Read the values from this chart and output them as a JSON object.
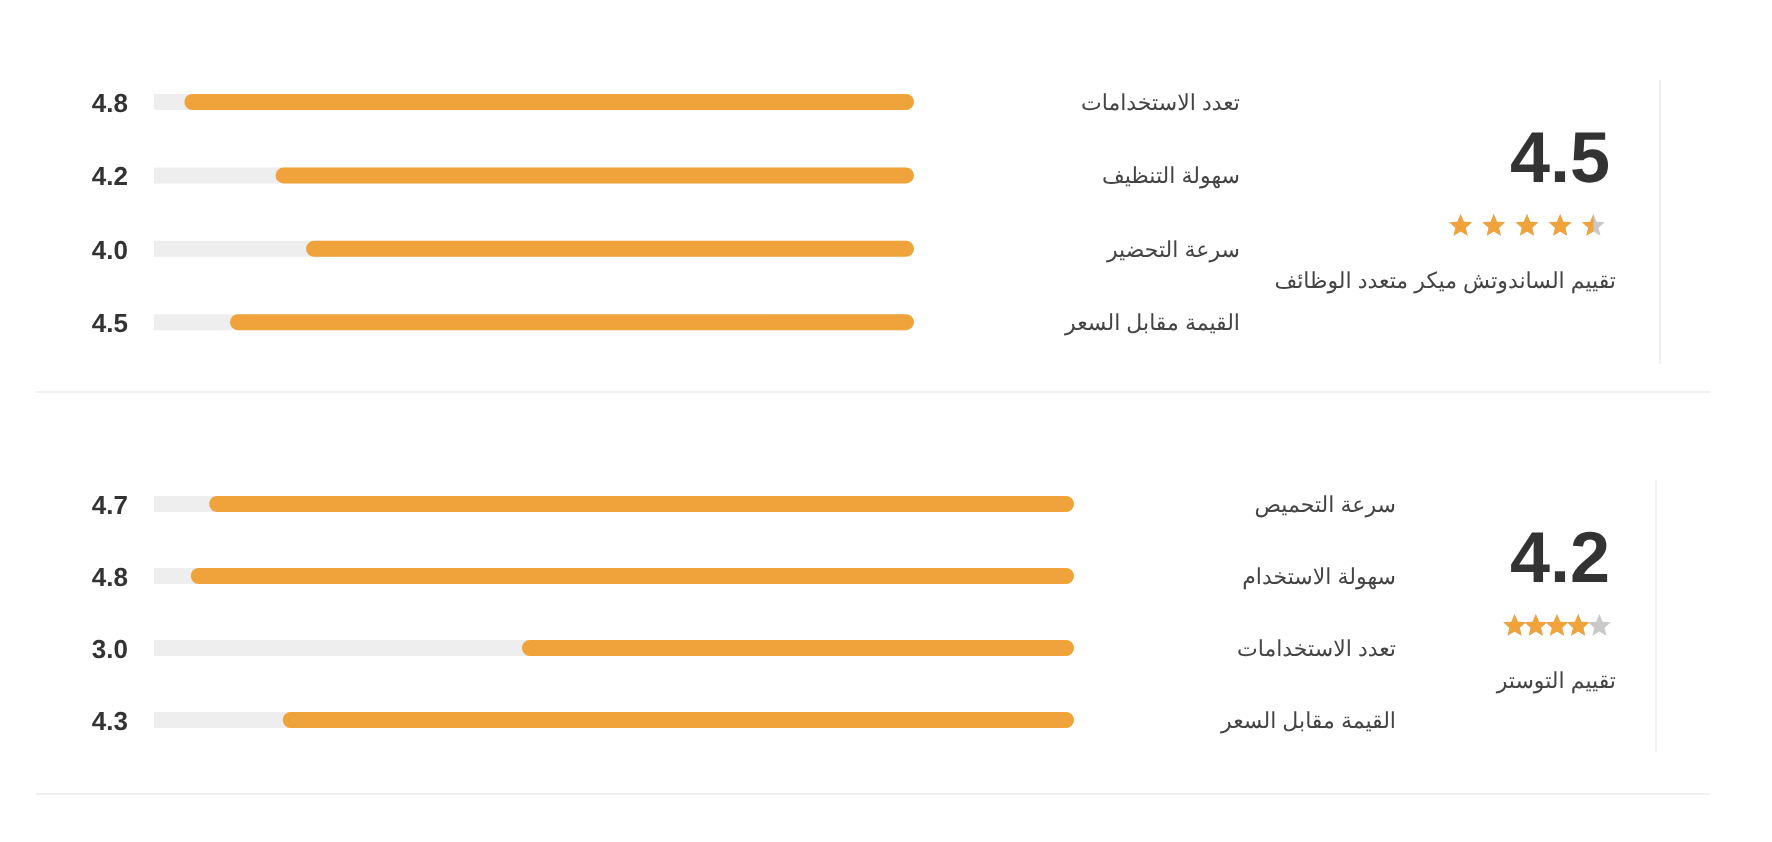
{
  "chart_data": [
    {
      "type": "other",
      "title": "تقييم الساندوتش ميكر متعدد الوظائف",
      "annotations": [
        "4.5"
      ]
    },
    {
      "type": "bar",
      "orientation": "horizontal",
      "categories": [
        "تعدد الاستخدامات",
        "سهولة التنظيف",
        "سرعة التحضير",
        "القيمة مقابل السعر"
      ],
      "values": [
        4.8,
        4.2,
        4.0,
        4.5
      ],
      "value_labels": [
        "4.8",
        "4.2",
        "4.0",
        "4.5"
      ],
      "color": "#f0a33a",
      "xlim": [
        5,
        0
      ],
      "tick_labels": "y"
    },
    {
      "type": "other",
      "title": "تقييم التوستر",
      "annotations": [
        "4.2"
      ]
    },
    {
      "type": "bar",
      "orientation": "horizontal",
      "categories": [
        "سرعة التحميص",
        "سهولة الاستخدام",
        "تعدد الاستخدامات",
        "القيمة مقابل السعر"
      ],
      "values": [
        4.7,
        4.8,
        3.0,
        4.3
      ],
      "value_labels": [
        "4.7",
        "4.8",
        "3.0",
        "4.3"
      ],
      "color": "#f0a33a",
      "xlim": [
        5,
        0
      ],
      "tick_labels": "y"
    }
  ]
}
